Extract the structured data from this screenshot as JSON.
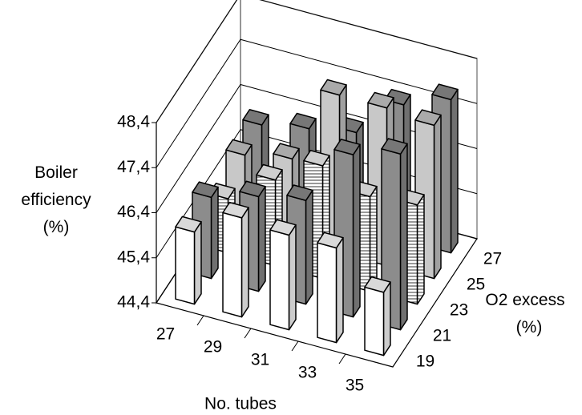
{
  "chart_data": {
    "type": "bar3d",
    "y_label": [
      "Boiler",
      "efficiency",
      "(%)"
    ],
    "x_label": "No. tubes",
    "depth_label": [
      "O2 excess",
      "(%)"
    ],
    "categories": [
      "27",
      "29",
      "31",
      "33",
      "35"
    ],
    "series": [
      {
        "name": "19",
        "color": "#ffffff",
        "values": [
          46.0,
          46.6,
          46.5,
          46.5,
          45.8
        ]
      },
      {
        "name": "21",
        "color": "#8c8c8c",
        "values": [
          46.2,
          46.5,
          46.7,
          48.0,
          48.3
        ]
      },
      {
        "name": "23",
        "color": "#f4f4f4",
        "hatch": true,
        "values": [
          45.6,
          46.3,
          46.9,
          46.5,
          46.6
        ]
      },
      {
        "name": "25",
        "color": "#c8c8c8",
        "values": [
          46.0,
          46.2,
          47.9,
          47.9,
          47.8
        ]
      },
      {
        "name": "27",
        "color": "#8c8c8c",
        "values": [
          46.1,
          46.3,
          46.5,
          47.4,
          47.8
        ]
      }
    ],
    "ylim": [
      44.4,
      48.4
    ],
    "yticks": [
      {
        "value": 44.4,
        "label": "44,4"
      },
      {
        "value": 45.4,
        "label": "45,4"
      },
      {
        "value": 46.4,
        "label": "46,4"
      },
      {
        "value": 47.4,
        "label": "47,4"
      },
      {
        "value": 48.4,
        "label": "48,4"
      }
    ],
    "grid": true
  }
}
